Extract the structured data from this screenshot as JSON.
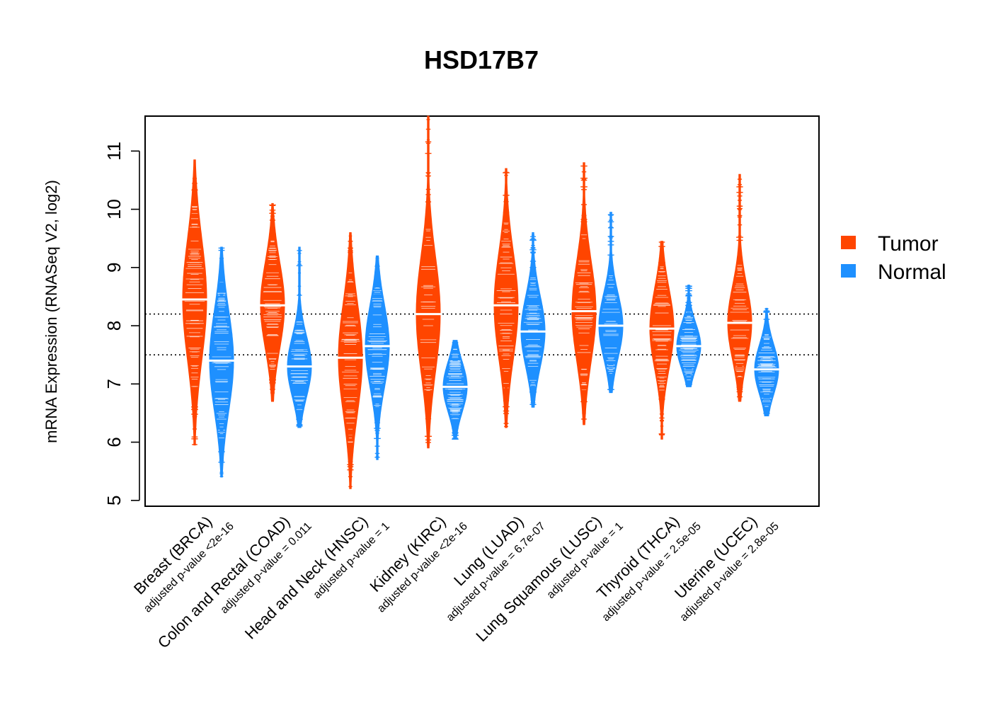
{
  "chart_data": {
    "type": "violin-beeswarm",
    "title": "HSD17B7",
    "ylabel": "mRNA Expression (RNASeq V2, log2)",
    "ylim": [
      4.9,
      11.6
    ],
    "yticks": [
      5,
      6,
      7,
      8,
      9,
      10,
      11
    ],
    "reference_lines": [
      7.5,
      8.2
    ],
    "legend": {
      "position": "right",
      "entries": [
        {
          "name": "Tumor",
          "color": "#FF4500"
        },
        {
          "name": "Normal",
          "color": "#1E90FF"
        }
      ]
    },
    "categories": [
      {
        "label": "Breast (BRCA)",
        "pvalue": "adjusted p-value <2e-16",
        "tumor": {
          "median": 8.45,
          "min": 5.95,
          "max": 10.85
        },
        "normal": {
          "median": 7.4,
          "min": 5.4,
          "max": 9.35
        }
      },
      {
        "label": "Colon and Rectal (COAD)",
        "pvalue": "adjusted p-value = 0.011",
        "tumor": {
          "median": 8.35,
          "min": 6.7,
          "max": 10.1
        },
        "normal": {
          "median": 7.3,
          "min": 6.25,
          "max": 9.35
        }
      },
      {
        "label": "Head and Neck (HNSC)",
        "pvalue": "adjusted p-value = 1",
        "tumor": {
          "median": 7.45,
          "min": 5.2,
          "max": 9.6
        },
        "normal": {
          "median": 7.65,
          "min": 5.7,
          "max": 9.2
        }
      },
      {
        "label": "Kidney (KIRC)",
        "pvalue": "adjusted p-value <2e-16",
        "tumor": {
          "median": 8.2,
          "min": 5.9,
          "max": 11.6
        },
        "normal": {
          "median": 6.95,
          "min": 6.05,
          "max": 7.75
        }
      },
      {
        "label": "Lung (LUAD)",
        "pvalue": "adjusted p-value = 6.7e-07",
        "tumor": {
          "median": 8.35,
          "min": 6.25,
          "max": 10.7
        },
        "normal": {
          "median": 7.9,
          "min": 6.6,
          "max": 9.6
        }
      },
      {
        "label": "Lung Squamous (LUSC)",
        "pvalue": "adjusted p-value = 1",
        "tumor": {
          "median": 8.25,
          "min": 6.3,
          "max": 10.8
        },
        "normal": {
          "median": 8.0,
          "min": 6.85,
          "max": 9.95
        }
      },
      {
        "label": "Thyroid (THCA)",
        "pvalue": "adjusted p-value = 2.5e-05",
        "tumor": {
          "median": 7.95,
          "min": 6.05,
          "max": 9.45
        },
        "normal": {
          "median": 7.65,
          "min": 6.95,
          "max": 8.7
        }
      },
      {
        "label": "Uterine (UCEC)",
        "pvalue": "adjusted p-value = 2.8e-05",
        "tumor": {
          "median": 8.05,
          "min": 6.7,
          "max": 10.6
        },
        "normal": {
          "median": 7.25,
          "min": 6.45,
          "max": 8.3
        }
      }
    ]
  }
}
